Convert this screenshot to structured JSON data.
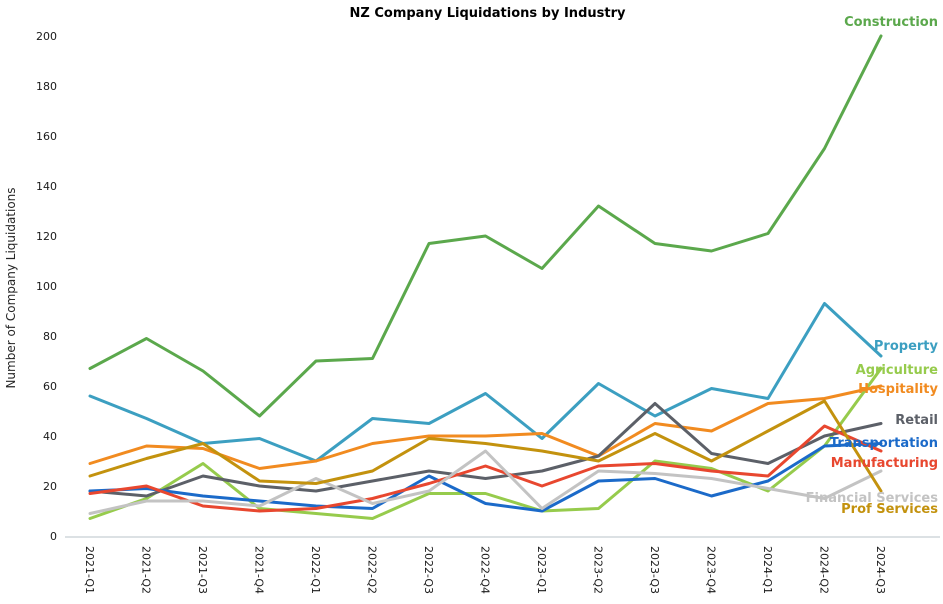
{
  "page": {
    "title": "NZ Company Liquidations by Industry",
    "y_axis_label": "Number of Company Liquidations"
  },
  "chart_data": {
    "type": "line",
    "title": "NZ Company Liquidations by Industry",
    "xlabel": "",
    "ylabel": "Number of Company Liquidations",
    "ylim": [
      0,
      200
    ],
    "yticks": [
      0,
      20,
      40,
      60,
      80,
      100,
      120,
      140,
      160,
      180,
      200
    ],
    "grid": false,
    "legend_position": "line-end-labels-right",
    "categories": [
      "2021-Q1",
      "2021-Q2",
      "2021-Q3",
      "2021-Q4",
      "2022-Q1",
      "2022-Q2",
      "2022-Q3",
      "2022-Q4",
      "2023-Q1",
      "2023-Q2",
      "2023-Q3",
      "2023-Q4",
      "2024-Q1",
      "2024-Q2",
      "2024-Q3"
    ],
    "series": [
      {
        "name": "Construction",
        "color": "#5BA84C",
        "values": [
          67,
          79,
          66,
          48,
          70,
          71,
          117,
          120,
          107,
          132,
          117,
          114,
          121,
          155,
          200
        ]
      },
      {
        "name": "Property",
        "color": "#3C9FC1",
        "values": [
          56,
          47,
          37,
          39,
          30,
          47,
          45,
          57,
          39,
          61,
          48,
          59,
          55,
          93,
          72
        ]
      },
      {
        "name": "Agriculture",
        "color": "#96CB4C",
        "values": [
          7,
          15,
          29,
          11,
          9,
          7,
          17,
          17,
          10,
          11,
          30,
          27,
          18,
          36,
          67
        ]
      },
      {
        "name": "Hospitality",
        "color": "#F18B20",
        "values": [
          29,
          36,
          35,
          27,
          30,
          37,
          40,
          40,
          41,
          32,
          45,
          42,
          53,
          55,
          60
        ]
      },
      {
        "name": "Retail",
        "color": "#5C6068",
        "values": [
          18,
          16,
          24,
          20,
          18,
          22,
          26,
          23,
          26,
          32,
          53,
          33,
          29,
          40,
          45
        ]
      },
      {
        "name": "Transportation",
        "color": "#1B6AC9",
        "values": [
          18,
          19,
          16,
          14,
          12,
          11,
          24,
          13,
          10,
          22,
          23,
          16,
          22,
          36,
          37
        ]
      },
      {
        "name": "Manufacturing",
        "color": "#E8472F",
        "values": [
          17,
          20,
          12,
          10,
          11,
          15,
          21,
          28,
          20,
          28,
          29,
          26,
          24,
          44,
          34
        ]
      },
      {
        "name": "Financial Services",
        "color": "#C3C3C3",
        "values": [
          9,
          14,
          14,
          12,
          23,
          13,
          18,
          34,
          11,
          26,
          25,
          23,
          19,
          15,
          26
        ]
      },
      {
        "name": "Prof Services",
        "color": "#C3920E",
        "values": [
          24,
          31,
          37,
          22,
          21,
          26,
          39,
          37,
          34,
          30,
          41,
          30,
          42,
          54,
          18
        ]
      }
    ]
  }
}
